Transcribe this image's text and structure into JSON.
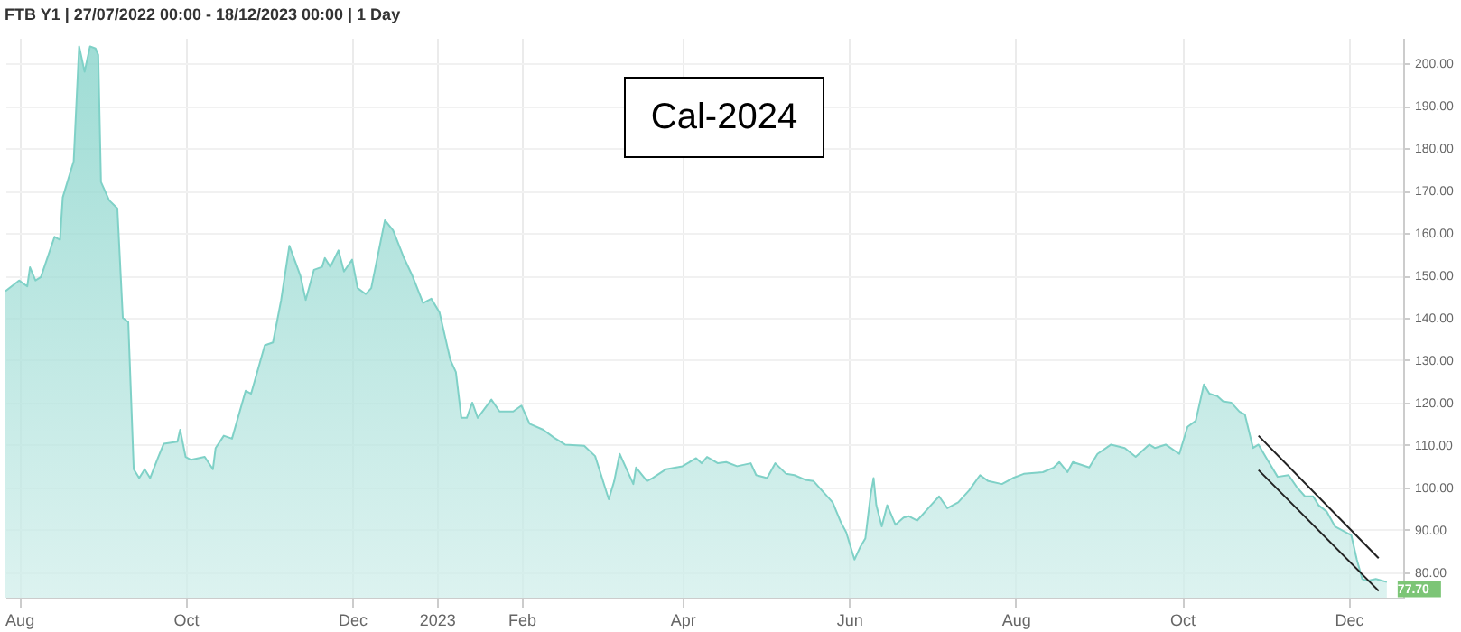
{
  "chart_data": {
    "type": "area",
    "title": "FTB Y1 | 27/07/2022 00:00 - 18/12/2023 00:00 | 1 Day",
    "annotations": [
      "Cal-2024",
      {
        "text": "77.70",
        "x": "2023-12-15",
        "y": 77.7
      }
    ],
    "series": [
      {
        "color": "#7fd1c7",
        "x": [
          "2022-07-27",
          "2022-08-01",
          "2022-08-04",
          "2022-08-05",
          "2022-08-07",
          "2022-08-09",
          "2022-08-14",
          "2022-08-16",
          "2022-08-17",
          "2022-08-20",
          "2022-08-21",
          "2022-08-23",
          "2022-08-25",
          "2022-08-27",
          "2022-08-29",
          "2022-08-30",
          "2022-08-31",
          "2022-09-03",
          "2022-09-06",
          "2022-09-08",
          "2022-09-10",
          "2022-09-12",
          "2022-09-14",
          "2022-09-16",
          "2022-09-18",
          "2022-09-21",
          "2022-09-23",
          "2022-09-28",
          "2022-09-29",
          "2022-10-01",
          "2022-10-03",
          "2022-10-08",
          "2022-10-11",
          "2022-10-12",
          "2022-10-15",
          "2022-10-18",
          "2022-10-23",
          "2022-10-25",
          "2022-10-30",
          "2022-11-02",
          "2022-11-05",
          "2022-11-08",
          "2022-11-12",
          "2022-11-14",
          "2022-11-17",
          "2022-11-20",
          "2022-11-21",
          "2022-11-23",
          "2022-11-26",
          "2022-11-28",
          "2022-12-01",
          "2022-12-03",
          "2022-12-06",
          "2022-12-08",
          "2022-12-13",
          "2022-12-16",
          "2022-12-20",
          "2022-12-23",
          "2022-12-27",
          "2022-12-30",
          "2023-01-02",
          "2023-01-06",
          "2023-01-08",
          "2023-01-10",
          "2023-01-12",
          "2023-01-14",
          "2023-01-16",
          "2023-01-21",
          "2023-01-24",
          "2023-01-29",
          "2023-02-01",
          "2023-02-04",
          "2023-02-09",
          "2023-02-13",
          "2023-02-17",
          "2023-02-24",
          "2023-02-28",
          "2023-03-05",
          "2023-03-07",
          "2023-03-09",
          "2023-03-14",
          "2023-03-15",
          "2023-03-19",
          "2023-03-21",
          "2023-03-26",
          "2023-04-01",
          "2023-04-06",
          "2023-04-08",
          "2023-04-10",
          "2023-04-14",
          "2023-04-17",
          "2023-04-21",
          "2023-04-26",
          "2023-04-28",
          "2023-05-02",
          "2023-05-05",
          "2023-05-09",
          "2023-05-12",
          "2023-05-16",
          "2023-05-19",
          "2023-05-23",
          "2023-05-26",
          "2023-05-29",
          "2023-05-31",
          "2023-06-03",
          "2023-06-05",
          "2023-06-07",
          "2023-06-09",
          "2023-06-10",
          "2023-06-11",
          "2023-06-13",
          "2023-06-15",
          "2023-06-18",
          "2023-06-21",
          "2023-06-23",
          "2023-06-26",
          "2023-07-01",
          "2023-07-04",
          "2023-07-07",
          "2023-07-11",
          "2023-07-15",
          "2023-07-19",
          "2023-07-22",
          "2023-07-27",
          "2023-07-31",
          "2023-08-04",
          "2023-08-11",
          "2023-08-15",
          "2023-08-17",
          "2023-08-20",
          "2023-08-22",
          "2023-08-28",
          "2023-08-31",
          "2023-09-05",
          "2023-09-10",
          "2023-09-14",
          "2023-09-19",
          "2023-09-21",
          "2023-09-25",
          "2023-09-30",
          "2023-10-03",
          "2023-10-06",
          "2023-10-09",
          "2023-10-11",
          "2023-10-14",
          "2023-10-16",
          "2023-10-19",
          "2023-10-22",
          "2023-10-24",
          "2023-10-27",
          "2023-10-29",
          "2023-11-02",
          "2023-11-05",
          "2023-11-09",
          "2023-11-12",
          "2023-11-15",
          "2023-11-18",
          "2023-11-20",
          "2023-11-23",
          "2023-11-26",
          "2023-11-30",
          "2023-12-02",
          "2023-12-04",
          "2023-12-06",
          "2023-12-08",
          "2023-12-11",
          "2023-12-15"
        ],
        "values": [
          146.3,
          148.8,
          147.4,
          151.9,
          148.8,
          149.6,
          159.1,
          158.4,
          168.4,
          174.8,
          176.9,
          204,
          198,
          204,
          203.5,
          202,
          172,
          167.7,
          165.8,
          140,
          139,
          104.3,
          102.2,
          104.3,
          102.2,
          107.2,
          110.3,
          110.8,
          113.6,
          107.2,
          106.5,
          107.2,
          104.3,
          109.3,
          112.2,
          111.5,
          122.8,
          122.1,
          133.5,
          134.2,
          144.2,
          157,
          150,
          144.2,
          151.3,
          152,
          154.1,
          152,
          155.9,
          150.9,
          153.7,
          147,
          145.6,
          147,
          163,
          160.6,
          154.1,
          150,
          143.5,
          144.5,
          141.3,
          130,
          127.2,
          116.4,
          116.4,
          120,
          116.4,
          120.7,
          117.9,
          117.9,
          119.3,
          115,
          113.6,
          111.7,
          110.1,
          109.8,
          107.4,
          97.2,
          101.5,
          107.9,
          100.8,
          104.7,
          101.5,
          102.2,
          104.3,
          105,
          106.9,
          105.7,
          107.2,
          105.7,
          106,
          105,
          105.7,
          102.9,
          102.2,
          105.7,
          103.2,
          102.9,
          101.8,
          101.5,
          98.6,
          96.5,
          91.8,
          89.4,
          83,
          85.8,
          88,
          98.6,
          102.2,
          95.8,
          90.8,
          95.8,
          91.2,
          92.9,
          93.2,
          92.2,
          95.8,
          97.9,
          95.1,
          96.5,
          99.3,
          102.9,
          101.5,
          100.8,
          102.2,
          103.2,
          103.6,
          104.7,
          106,
          103.6,
          106,
          104.7,
          107.9,
          110.1,
          109.3,
          107.2,
          110.1,
          109.3,
          110.1,
          107.9,
          114.3,
          115.7,
          124.3,
          122.1,
          121.5,
          120.3,
          120,
          117.9,
          117.2,
          109.3,
          110.1,
          105.7,
          102.5,
          102.9,
          100.1,
          97.9,
          97.9,
          95.8,
          94.3,
          90.8,
          89.4,
          88.7,
          83,
          78.4,
          78,
          78.4,
          77.7
        ]
      },
      {
        "type": "line",
        "color": "#222222",
        "x": [
          "2023-10-29",
          "2023-12-12"
        ],
        "values": [
          112.2,
          83.3
        ]
      },
      {
        "type": "line",
        "color": "#222222",
        "x": [
          "2023-10-29",
          "2023-12-12"
        ],
        "values": [
          104.1,
          75.6
        ]
      }
    ],
    "xlim": [
      "2022-07-27",
      "2023-12-21"
    ],
    "xticks": [
      {
        "value": "2022-08-01",
        "label": "Aug"
      },
      {
        "value": "2022-10-01",
        "label": "Oct"
      },
      {
        "value": "2022-12-01",
        "label": "Dec"
      },
      {
        "value": "2023-01-01",
        "label": "2023"
      },
      {
        "value": "2023-02-01",
        "label": "Feb"
      },
      {
        "value": "2023-04-01",
        "label": "Apr"
      },
      {
        "value": "2023-06-01",
        "label": "Jun"
      },
      {
        "value": "2023-08-01",
        "label": "Aug"
      },
      {
        "value": "2023-10-01",
        "label": "Oct"
      },
      {
        "value": "2023-12-01",
        "label": "Dec"
      }
    ],
    "ylim": [
      74,
      206
    ],
    "yticks": [
      {
        "value": 80,
        "label": "80.00"
      },
      {
        "value": 90,
        "label": "90.00"
      },
      {
        "value": 100,
        "label": "100.00"
      },
      {
        "value": 110,
        "label": "110.00"
      },
      {
        "value": 120,
        "label": "120.00"
      },
      {
        "value": 130,
        "label": "130.00"
      },
      {
        "value": 140,
        "label": "140.00"
      },
      {
        "value": 150,
        "label": "150.00"
      },
      {
        "value": 160,
        "label": "160.00"
      },
      {
        "value": 170,
        "label": "170.00"
      },
      {
        "value": 180,
        "label": "180.00"
      },
      {
        "value": 190,
        "label": "190.00"
      },
      {
        "value": 200,
        "label": "200.00"
      }
    ],
    "grid": true,
    "marker": "none",
    "line_style": "solid"
  }
}
